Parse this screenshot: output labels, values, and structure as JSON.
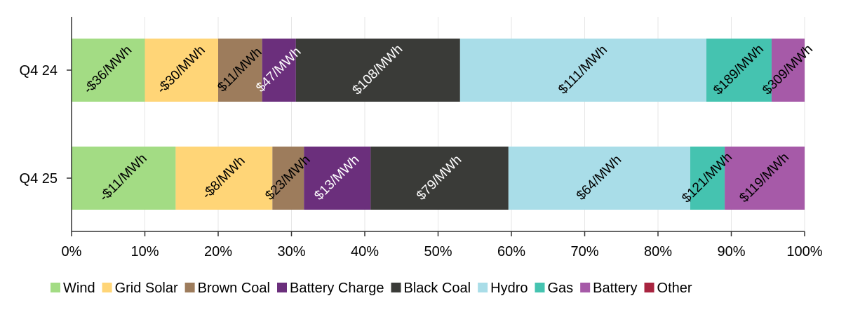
{
  "chart_data": {
    "type": "bar",
    "orientation": "horizontal",
    "stacked": "percent",
    "categories": [
      "Q4 24",
      "Q4 25"
    ],
    "xlim": [
      0,
      100
    ],
    "x_ticks": [
      "0%",
      "10%",
      "20%",
      "30%",
      "40%",
      "50%",
      "60%",
      "70%",
      "80%",
      "90%",
      "100%"
    ],
    "grid": true,
    "legend_position": "bottom",
    "series": [
      {
        "name": "Wind",
        "color": "#a3dc84",
        "label_color": "#000000",
        "values": [
          10.0,
          14.2
        ],
        "labels": [
          "-$36/MWh",
          "-$11/MWh"
        ]
      },
      {
        "name": "Grid Solar",
        "color": "#ffd577",
        "label_color": "#000000",
        "values": [
          10.0,
          13.2
        ],
        "labels": [
          "-$30/MWh",
          "-$8/MWh"
        ]
      },
      {
        "name": "Brown Coal",
        "color": "#9d7c5c",
        "label_color": "#000000",
        "values": [
          6.0,
          4.3
        ],
        "labels": [
          "$11/MWh",
          "$23/MWh"
        ]
      },
      {
        "name": "Battery Charge",
        "color": "#6b2f7c",
        "label_color": "#ffffff",
        "values": [
          4.6,
          9.1
        ],
        "labels": [
          "$47/MWh",
          "$13/MWh"
        ]
      },
      {
        "name": "Black Coal",
        "color": "#3a3b38",
        "label_color": "#ffffff",
        "values": [
          22.4,
          18.8
        ],
        "labels": [
          "$108/MWh",
          "$79/MWh"
        ]
      },
      {
        "name": "Hydro",
        "color": "#a9dde8",
        "label_color": "#000000",
        "values": [
          33.6,
          24.8
        ],
        "labels": [
          "$111/MWh",
          "$64/MWh"
        ]
      },
      {
        "name": "Gas",
        "color": "#45c3b0",
        "label_color": "#000000",
        "values": [
          8.9,
          4.7
        ],
        "labels": [
          "$189/MWh",
          "$121/MWh"
        ]
      },
      {
        "name": "Battery",
        "color": "#a65aa8",
        "label_color": "#000000",
        "values": [
          4.5,
          10.9
        ],
        "labels": [
          "$309/MWh",
          "$119/MWh"
        ]
      },
      {
        "name": "Other",
        "color": "#a8243f",
        "label_color": "#000000",
        "values": [
          0,
          0
        ],
        "labels": [
          "",
          ""
        ]
      }
    ]
  }
}
